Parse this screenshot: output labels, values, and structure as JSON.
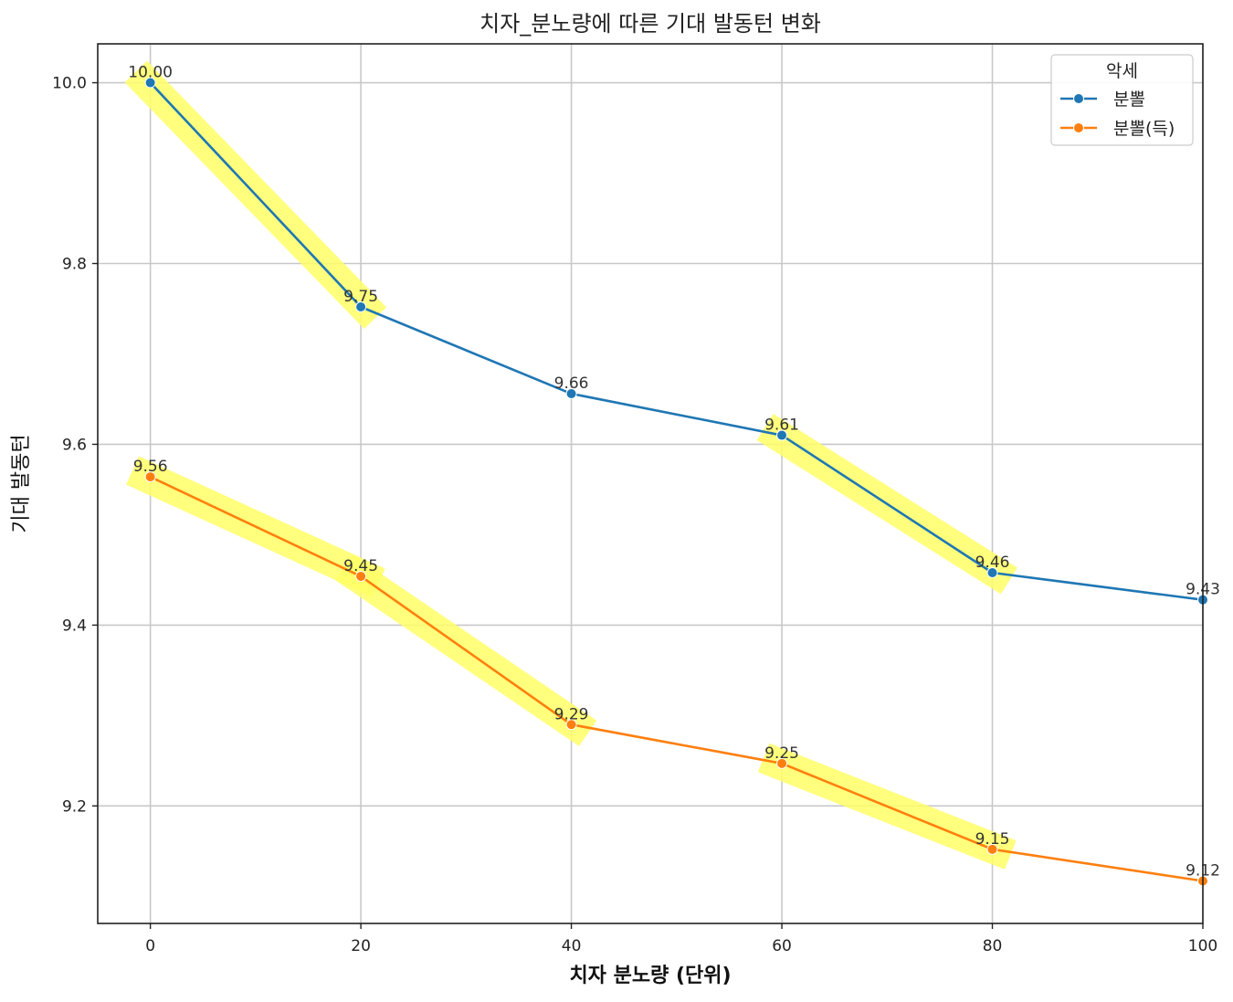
{
  "chart_data": {
    "type": "line",
    "title": "치자_분노량에 따른 기대 발동턴 변화",
    "xlabel": "치자 분노량 (단위)",
    "ylabel": "기대 발동턴",
    "x": [
      0,
      20,
      40,
      60,
      80,
      100
    ],
    "xlim": [
      -5,
      100
    ],
    "ylim": [
      9.07,
      10.043
    ],
    "x_ticks": [
      0,
      20,
      40,
      60,
      80,
      100
    ],
    "y_ticks": [
      9.2,
      9.4,
      9.6,
      9.8,
      10.0
    ],
    "x_tick_labels": [
      "0",
      "20",
      "40",
      "60",
      "80",
      "100"
    ],
    "y_tick_labels": [
      "9.2",
      "9.4",
      "9.6",
      "9.8",
      "10.0"
    ],
    "grid": true,
    "legend": {
      "title": "악세",
      "placement": "top-right"
    },
    "series": [
      {
        "name": "분뽈",
        "color": "#1f77b4",
        "values": [
          10.0,
          9.752,
          9.656,
          9.61,
          9.458,
          9.428
        ],
        "labels": [
          "10.00",
          "9.75",
          "9.66",
          "9.61",
          "9.46",
          "9.43"
        ]
      },
      {
        "name": "분뽈(득)",
        "color": "#ff7f0e",
        "values": [
          9.564,
          9.454,
          9.29,
          9.247,
          9.152,
          9.117
        ],
        "labels": [
          "9.56",
          "9.45",
          "9.29",
          "9.25",
          "9.15",
          "9.12"
        ]
      }
    ],
    "highlights": {
      "color": "#ffff66",
      "segments": [
        {
          "series": 0,
          "from": 0,
          "to": 1
        },
        {
          "series": 0,
          "from": 3,
          "to": 4
        },
        {
          "series": 1,
          "from": 0,
          "to": 1
        },
        {
          "series": 1,
          "from": 1,
          "to": 2
        },
        {
          "series": 1,
          "from": 3,
          "to": 4
        }
      ]
    }
  }
}
